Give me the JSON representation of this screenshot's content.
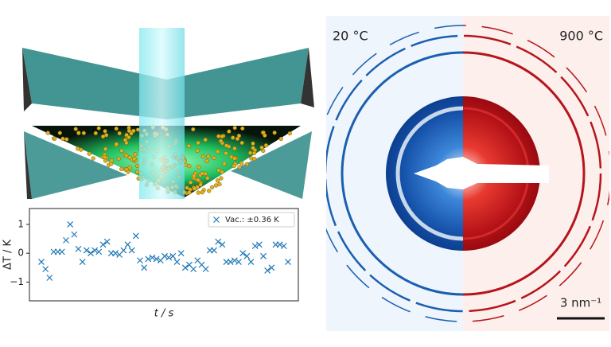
{
  "chart_data": {
    "type": "scatter",
    "y_label": "ΔT / K",
    "x_label": "t / s",
    "series": [
      {
        "name": "Vac.: ±0.36 K",
        "color": "#1f77b4",
        "values": [
          -0.3,
          -0.55,
          -0.85,
          0.05,
          0.05,
          0.05,
          0.45,
          1.0,
          0.65,
          0.15,
          -0.3,
          0.1,
          0.0,
          0.1,
          0.05,
          0.3,
          0.4,
          0.0,
          0.0,
          -0.05,
          0.1,
          0.3,
          0.1,
          0.6,
          -0.25,
          -0.5,
          -0.2,
          -0.15,
          -0.2,
          -0.25,
          -0.1,
          -0.15,
          -0.1,
          -0.3,
          0.0,
          -0.5,
          -0.4,
          -0.55,
          -0.25,
          -0.4,
          -0.55,
          0.1,
          0.1,
          0.4,
          0.3,
          -0.3,
          -0.3,
          -0.25,
          -0.3,
          0.0,
          -0.1,
          -0.3,
          0.25,
          0.3,
          -0.1,
          -0.6,
          -0.5,
          0.3,
          0.3,
          0.25,
          -0.3
        ]
      }
    ],
    "ylim": [
      -1.65,
      1.55
    ],
    "yticks": [
      {
        "value": -1,
        "label": "−1"
      },
      0,
      1
    ],
    "legend": "upper right"
  },
  "diffraction": {
    "left_label": "20 °C",
    "right_label": "900 °C",
    "scale_label": "3 nm⁻¹"
  }
}
